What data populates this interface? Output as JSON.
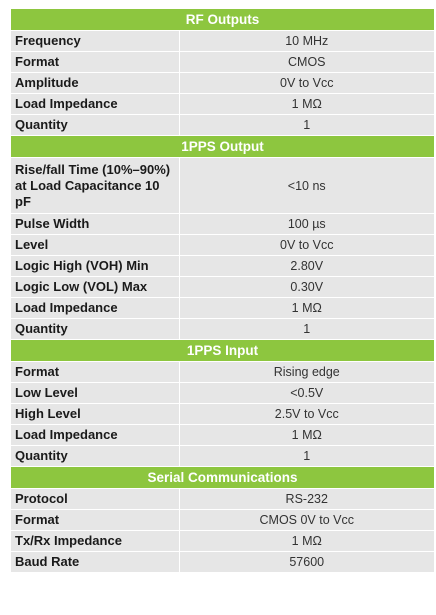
{
  "sections": [
    {
      "title": "RF Outputs",
      "rows": [
        {
          "label": "Frequency",
          "value": "10 MHz"
        },
        {
          "label": "Format",
          "value": "CMOS"
        },
        {
          "label": "Amplitude",
          "value": "0V to Vcc"
        },
        {
          "label": "Load Impedance",
          "value": "1 MΩ"
        },
        {
          "label": "Quantity",
          "value": "1"
        }
      ]
    },
    {
      "title": "1PPS Output",
      "rows": [
        {
          "label": "Rise/fall Time (10%–90%) at Load Capacitance 10 pF",
          "value": "<10 ns"
        },
        {
          "label": "Pulse Width",
          "value": "100 µs"
        },
        {
          "label": "Level",
          "value": "0V to Vcc"
        },
        {
          "label": "Logic High (VOH) Min",
          "value": "2.80V"
        },
        {
          "label": "Logic Low (VOL) Max",
          "value": "0.30V"
        },
        {
          "label": "Load Impedance",
          "value": "1 MΩ"
        },
        {
          "label": "Quantity",
          "value": "1"
        }
      ]
    },
    {
      "title": "1PPS Input",
      "rows": [
        {
          "label": "Format",
          "value": "Rising edge"
        },
        {
          "label": "Low Level",
          "value": "<0.5V"
        },
        {
          "label": "High Level",
          "value": "2.5V to Vcc"
        },
        {
          "label": "Load Impedance",
          "value": "1 MΩ"
        },
        {
          "label": "Quantity",
          "value": "1"
        }
      ]
    },
    {
      "title": "Serial Communications",
      "rows": [
        {
          "label": "Protocol",
          "value": "RS-232"
        },
        {
          "label": "Format",
          "value": "CMOS 0V to Vcc"
        },
        {
          "label": "Tx/Rx Impedance",
          "value": "1 MΩ"
        },
        {
          "label": "Baud Rate",
          "value": "57600"
        }
      ]
    }
  ]
}
